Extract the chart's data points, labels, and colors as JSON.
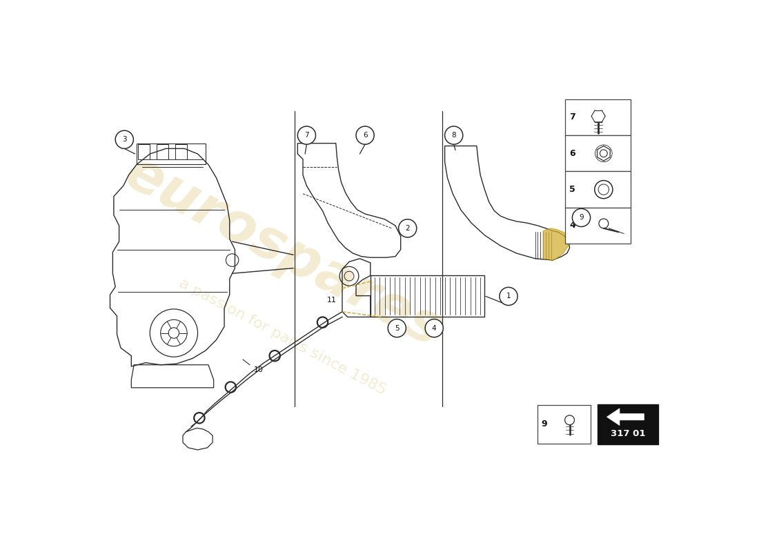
{
  "background_color": "#ffffff",
  "watermark_text1": "eurospares",
  "watermark_text2": "a passion for parts since 1985",
  "watermark_color": "#c8a832",
  "watermark_alpha": 0.22,
  "diagram_code": "317 01",
  "line_color": "#2a2a2a",
  "label_circle_edge": "#2a2a2a",
  "arrow_bg": "#111111",
  "arrow_fg": "#ffffff",
  "fig_width": 11.0,
  "fig_height": 8.0,
  "dpi": 100
}
